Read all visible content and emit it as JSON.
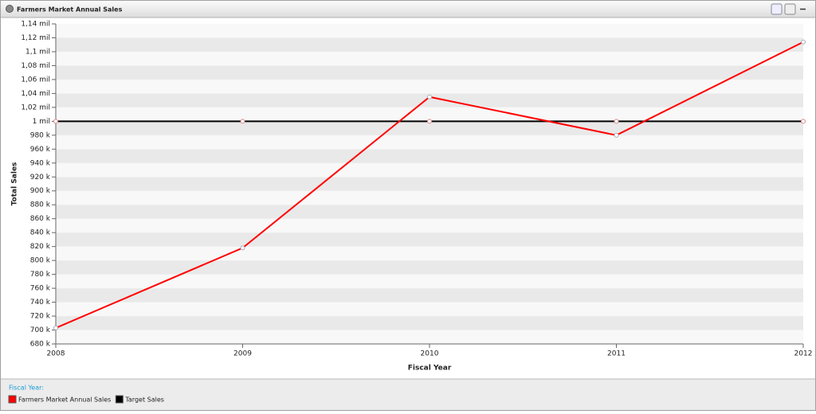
{
  "panel": {
    "title": "Farmers Market Annual Sales"
  },
  "chart_data": {
    "type": "line",
    "x_label": "Fiscal Year",
    "y_label": "Total Sales",
    "categories": [
      "2008",
      "2009",
      "2010",
      "2011",
      "2012"
    ],
    "series": [
      {
        "name": "Farmers Market Annual Sales",
        "color": "#ff0000",
        "values": [
          703000,
          818000,
          1035000,
          980000,
          1114000
        ]
      },
      {
        "name": "Target Sales",
        "color": "#000000",
        "values": [
          1000000,
          1000000,
          1000000,
          1000000,
          1000000
        ]
      }
    ],
    "ylim": [
      680000,
      1140000
    ],
    "yticks": [
      {
        "value": 680000,
        "label": "680 k"
      },
      {
        "value": 700000,
        "label": "700 k"
      },
      {
        "value": 720000,
        "label": "720 k"
      },
      {
        "value": 740000,
        "label": "740 k"
      },
      {
        "value": 760000,
        "label": "760 k"
      },
      {
        "value": 780000,
        "label": "780 k"
      },
      {
        "value": 800000,
        "label": "800 k"
      },
      {
        "value": 820000,
        "label": "820 k"
      },
      {
        "value": 840000,
        "label": "840 k"
      },
      {
        "value": 860000,
        "label": "860 k"
      },
      {
        "value": 880000,
        "label": "880 k"
      },
      {
        "value": 900000,
        "label": "900 k"
      },
      {
        "value": 920000,
        "label": "920 k"
      },
      {
        "value": 940000,
        "label": "940 k"
      },
      {
        "value": 960000,
        "label": "960 k"
      },
      {
        "value": 980000,
        "label": "980 k"
      },
      {
        "value": 1000000,
        "label": "1 mil"
      },
      {
        "value": 1020000,
        "label": "1,02 mil"
      },
      {
        "value": 1040000,
        "label": "1,04 mil"
      },
      {
        "value": 1060000,
        "label": "1,06 mil"
      },
      {
        "value": 1080000,
        "label": "1,08 mil"
      },
      {
        "value": 1100000,
        "label": "1,1 mil"
      },
      {
        "value": 1120000,
        "label": "1,12 mil"
      },
      {
        "value": 1140000,
        "label": "1,14 mil"
      }
    ],
    "legend_title": "Fiscal Year:",
    "legend": "bottom-left",
    "grid": "bands"
  }
}
